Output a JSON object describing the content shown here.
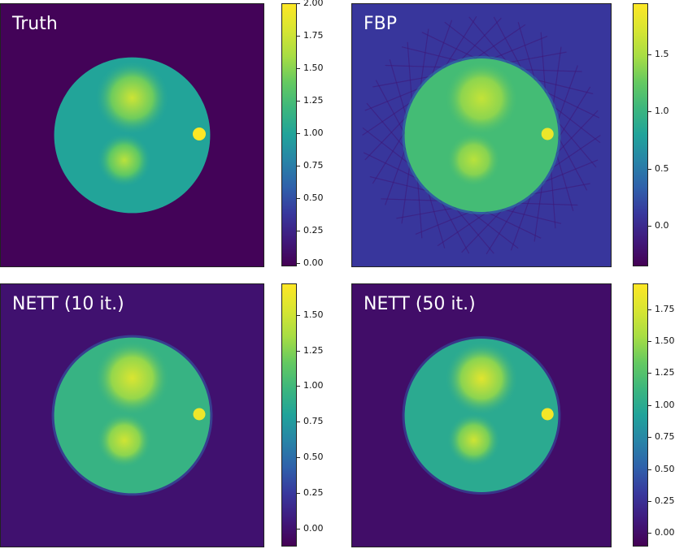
{
  "figure": {
    "colors": {
      "background": "#3f22a3",
      "colormap": [
        "#440154",
        "#3b2a98",
        "#2c6fb0",
        "#21a39a",
        "#4ec36b",
        "#bde33a",
        "#fde725"
      ]
    }
  },
  "chart_data": [
    {
      "type": "heatmap",
      "title": "Truth",
      "colorbar": {
        "vmin": -0.02,
        "vmax": 2.0,
        "ticks": [
          "0.00",
          "0.25",
          "0.50",
          "0.75",
          "1.00",
          "1.25",
          "1.50",
          "1.75",
          "2.00"
        ],
        "tick_values": [
          0.0,
          0.25,
          0.5,
          0.75,
          1.0,
          1.25,
          1.5,
          1.75,
          2.0
        ]
      },
      "phantom": {
        "background": 0.0,
        "disc": 1.0,
        "upper_blob": 1.75,
        "lower_blob": 1.65,
        "small_dot": 2.0
      },
      "style": {
        "streaks": false,
        "noise": false
      }
    },
    {
      "type": "heatmap",
      "title": "FBP",
      "colorbar": {
        "vmin": -0.35,
        "vmax": 1.95,
        "ticks": [
          "0.0",
          "0.5",
          "1.0",
          "1.5"
        ],
        "tick_values": [
          0.0,
          0.5,
          1.0,
          1.5
        ]
      },
      "phantom": {
        "background": 0.1,
        "disc": 1.1,
        "upper_blob": 1.6,
        "lower_blob": 1.55,
        "small_dot": 1.85
      },
      "style": {
        "streaks": true,
        "noise": true
      }
    },
    {
      "type": "heatmap",
      "title": "NETT (10 it.)",
      "colorbar": {
        "vmin": -0.12,
        "vmax": 1.72,
        "ticks": [
          "0.00",
          "0.25",
          "0.50",
          "0.75",
          "1.00",
          "1.25",
          "1.50"
        ],
        "tick_values": [
          0.0,
          0.25,
          0.5,
          0.75,
          1.0,
          1.25,
          1.5
        ]
      },
      "phantom": {
        "background": 0.0,
        "disc": 0.95,
        "upper_blob": 1.55,
        "lower_blob": 1.5,
        "small_dot": 1.65
      },
      "style": {
        "streaks": false,
        "noise": true
      }
    },
    {
      "type": "heatmap",
      "title": "NETT (50 it.)",
      "colorbar": {
        "vmin": -0.1,
        "vmax": 1.95,
        "ticks": [
          "0.00",
          "0.25",
          "0.50",
          "0.75",
          "1.00",
          "1.25",
          "1.50",
          "1.75"
        ],
        "tick_values": [
          0.0,
          0.25,
          0.5,
          0.75,
          1.0,
          1.25,
          1.5,
          1.75
        ]
      },
      "phantom": {
        "background": 0.0,
        "disc": 1.0,
        "upper_blob": 1.8,
        "lower_blob": 1.7,
        "small_dot": 1.9
      },
      "style": {
        "streaks": false,
        "noise": true
      }
    }
  ]
}
